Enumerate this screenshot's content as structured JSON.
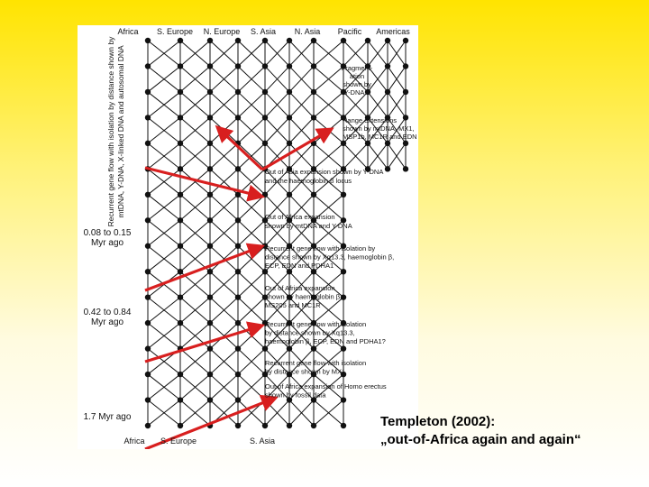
{
  "regions_top": [
    "Africa",
    "S. Europe",
    "N. Europe",
    "S. Asia",
    "N. Asia",
    "Pacific",
    "Americas"
  ],
  "regions_bottom": [
    "Africa",
    "S. Europe",
    "S. Asia"
  ],
  "vertical_label": [
    "Recurrent gene flow with isolation by distance shown by",
    "mtDNA, Y-DNA, X-linked DNA and autosomal DNA"
  ],
  "time_labels": [
    {
      "line1": "0.08 to 0.15",
      "line2": "Myr ago"
    },
    {
      "line1": "0.42 to 0.84",
      "line2": "Myr ago"
    },
    {
      "line1": "1.7 Myr ago",
      "line2": ""
    }
  ],
  "annotations": [
    [
      "Fragment-",
      "ation",
      "shown by",
      "Y-DNA ?"
    ],
    [
      "Range extensions",
      "shown by mtDNA, MX1,",
      "MSP1b, MC1R and EDN"
    ],
    [
      "Out of Asia expansion shown by Y-DNA",
      "and the haemoglobin β locus"
    ],
    [
      "Out of Africa expansion",
      "shown by mtDNA and Y-DNA"
    ],
    [
      "Recurrent gene flow with isolation by",
      "distance shown by Xq13.3, haemoglobin β,",
      "ECP, EDN and PDHA1"
    ],
    [
      "Out of Africa expansion",
      "shown by haemoglobin β,",
      "MS205 and MC1R"
    ],
    [
      "Recurrent gene flow with isolation",
      "by distance shown by Xq13.3,",
      "haemoglobin β, ECP, EDN and PDHA1?"
    ],
    [
      "Recurrent gene flow with isolation",
      "by distance shown by MX1"
    ],
    [
      "Out of Africa expansion of Homo erectus",
      "shown by fossil data"
    ]
  ],
  "colors": {
    "arrow": "#d81f1f",
    "grid": "#111111",
    "background_top": "#ffe400"
  },
  "caption": {
    "line1": "Templeton (2002):",
    "line2": "„out-of-Africa again and again“"
  }
}
